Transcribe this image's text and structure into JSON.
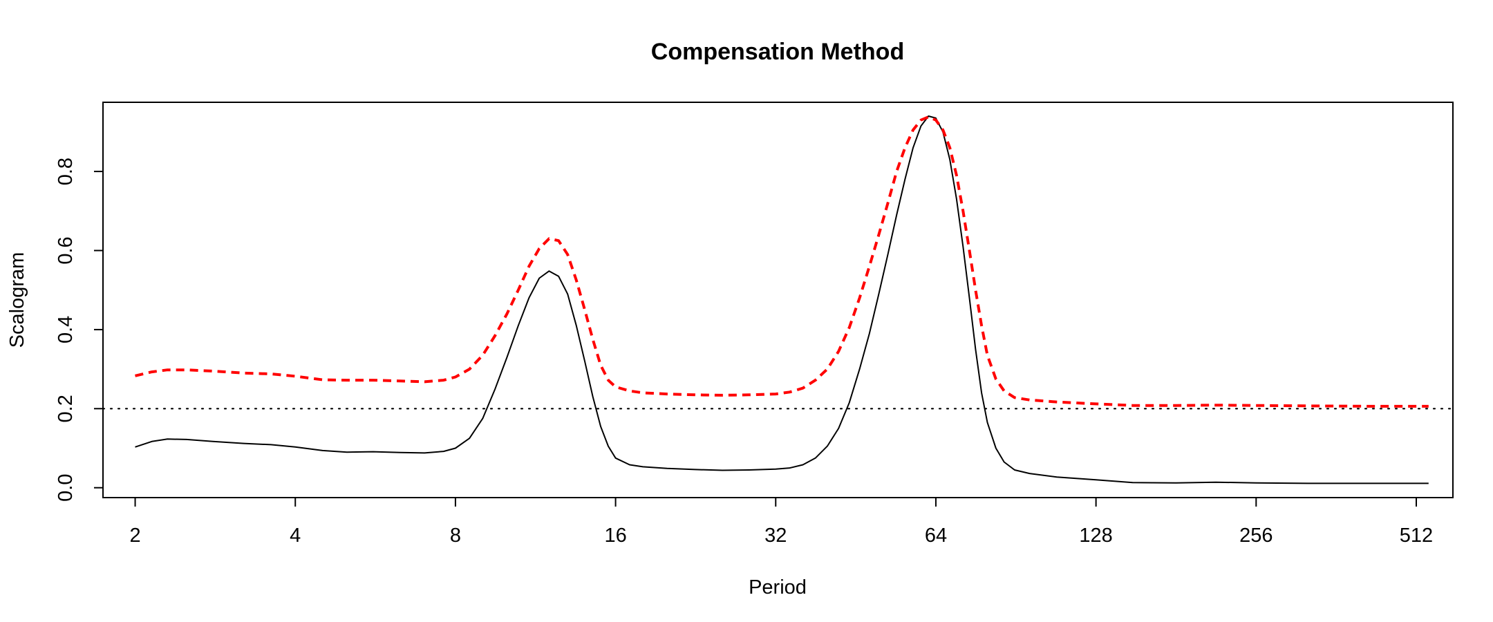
{
  "chart_data": {
    "type": "line",
    "title": "Compensation Method",
    "xlabel": "Period",
    "ylabel": "Scalogram",
    "x_scale": "log2",
    "xlim": [
      1.74,
      600
    ],
    "ylim": [
      -0.025,
      0.975
    ],
    "x_ticks": [
      2,
      4,
      8,
      16,
      32,
      64,
      128,
      256,
      512
    ],
    "x_tick_labels": [
      "2",
      "4",
      "8",
      "16",
      "32",
      "64",
      "128",
      "256",
      "512"
    ],
    "y_ticks": [
      0.0,
      0.2,
      0.4,
      0.6,
      0.8
    ],
    "y_tick_labels": [
      "0.0",
      "0.2",
      "0.4",
      "0.6",
      "0.8"
    ],
    "grid": false,
    "legend": "none",
    "reference_line": {
      "y": 0.2,
      "style": "dotted",
      "color": "#000000"
    },
    "series": [
      {
        "style": "solid",
        "color": "#000000",
        "points": [
          [
            2,
            0.103
          ],
          [
            2.15,
            0.117
          ],
          [
            2.3,
            0.123
          ],
          [
            2.5,
            0.122
          ],
          [
            2.8,
            0.117
          ],
          [
            3.2,
            0.112
          ],
          [
            3.6,
            0.109
          ],
          [
            4.0,
            0.103
          ],
          [
            4.5,
            0.094
          ],
          [
            5.0,
            0.09
          ],
          [
            5.6,
            0.091
          ],
          [
            6.3,
            0.089
          ],
          [
            7.0,
            0.088
          ],
          [
            7.6,
            0.092
          ],
          [
            8.0,
            0.1
          ],
          [
            8.5,
            0.125
          ],
          [
            9.0,
            0.175
          ],
          [
            9.5,
            0.25
          ],
          [
            10.0,
            0.33
          ],
          [
            10.5,
            0.41
          ],
          [
            11.0,
            0.48
          ],
          [
            11.5,
            0.53
          ],
          [
            12.0,
            0.548
          ],
          [
            12.5,
            0.535
          ],
          [
            13.0,
            0.49
          ],
          [
            13.5,
            0.41
          ],
          [
            14.0,
            0.32
          ],
          [
            14.5,
            0.23
          ],
          [
            15.0,
            0.155
          ],
          [
            15.5,
            0.105
          ],
          [
            16.0,
            0.075
          ],
          [
            17.0,
            0.058
          ],
          [
            18.0,
            0.053
          ],
          [
            20.0,
            0.049
          ],
          [
            22.6,
            0.046
          ],
          [
            25.4,
            0.044
          ],
          [
            28.5,
            0.045
          ],
          [
            32.0,
            0.047
          ],
          [
            34.0,
            0.05
          ],
          [
            36.0,
            0.058
          ],
          [
            38.0,
            0.075
          ],
          [
            40.0,
            0.105
          ],
          [
            42.0,
            0.15
          ],
          [
            44.0,
            0.215
          ],
          [
            46.0,
            0.3
          ],
          [
            48.0,
            0.39
          ],
          [
            50.0,
            0.49
          ],
          [
            52.0,
            0.59
          ],
          [
            54.0,
            0.69
          ],
          [
            56.0,
            0.78
          ],
          [
            58.0,
            0.86
          ],
          [
            60.0,
            0.915
          ],
          [
            62.0,
            0.94
          ],
          [
            64.0,
            0.935
          ],
          [
            66.0,
            0.9
          ],
          [
            68.0,
            0.83
          ],
          [
            70.0,
            0.73
          ],
          [
            72.0,
            0.61
          ],
          [
            74.0,
            0.48
          ],
          [
            76.0,
            0.35
          ],
          [
            78.0,
            0.24
          ],
          [
            80.0,
            0.165
          ],
          [
            83.0,
            0.1
          ],
          [
            86.0,
            0.065
          ],
          [
            90.0,
            0.045
          ],
          [
            96.0,
            0.036
          ],
          [
            108.0,
            0.027
          ],
          [
            128.0,
            0.02
          ],
          [
            150.0,
            0.013
          ],
          [
            181.0,
            0.012
          ],
          [
            215.0,
            0.014
          ],
          [
            256.0,
            0.012
          ],
          [
            320.0,
            0.011
          ],
          [
            430.0,
            0.011
          ],
          [
            540.0,
            0.011
          ]
        ]
      },
      {
        "style": "dashed",
        "color": "#ff0000",
        "points": [
          [
            2,
            0.283
          ],
          [
            2.15,
            0.293
          ],
          [
            2.3,
            0.298
          ],
          [
            2.5,
            0.298
          ],
          [
            2.8,
            0.295
          ],
          [
            3.2,
            0.29
          ],
          [
            3.6,
            0.288
          ],
          [
            4.0,
            0.282
          ],
          [
            4.5,
            0.273
          ],
          [
            5.0,
            0.272
          ],
          [
            5.6,
            0.272
          ],
          [
            6.3,
            0.27
          ],
          [
            7.0,
            0.268
          ],
          [
            7.6,
            0.272
          ],
          [
            8.0,
            0.28
          ],
          [
            8.5,
            0.3
          ],
          [
            9.0,
            0.335
          ],
          [
            9.5,
            0.385
          ],
          [
            10.0,
            0.44
          ],
          [
            10.5,
            0.5
          ],
          [
            11.0,
            0.56
          ],
          [
            11.5,
            0.605
          ],
          [
            12.0,
            0.63
          ],
          [
            12.5,
            0.625
          ],
          [
            13.0,
            0.59
          ],
          [
            13.5,
            0.525
          ],
          [
            14.0,
            0.45
          ],
          [
            14.5,
            0.375
          ],
          [
            15.0,
            0.31
          ],
          [
            15.5,
            0.272
          ],
          [
            16.0,
            0.255
          ],
          [
            17.0,
            0.245
          ],
          [
            18.0,
            0.24
          ],
          [
            20.0,
            0.237
          ],
          [
            22.6,
            0.235
          ],
          [
            25.4,
            0.234
          ],
          [
            28.5,
            0.235
          ],
          [
            32.0,
            0.237
          ],
          [
            34.0,
            0.242
          ],
          [
            36.0,
            0.252
          ],
          [
            38.0,
            0.272
          ],
          [
            40.0,
            0.3
          ],
          [
            42.0,
            0.345
          ],
          [
            44.0,
            0.405
          ],
          [
            46.0,
            0.48
          ],
          [
            48.0,
            0.56
          ],
          [
            50.0,
            0.64
          ],
          [
            52.0,
            0.72
          ],
          [
            54.0,
            0.8
          ],
          [
            56.0,
            0.86
          ],
          [
            58.0,
            0.905
          ],
          [
            60.0,
            0.93
          ],
          [
            62.0,
            0.938
          ],
          [
            64.0,
            0.93
          ],
          [
            66.0,
            0.905
          ],
          [
            68.0,
            0.86
          ],
          [
            70.0,
            0.79
          ],
          [
            72.0,
            0.7
          ],
          [
            74.0,
            0.6
          ],
          [
            76.0,
            0.5
          ],
          [
            78.0,
            0.41
          ],
          [
            80.0,
            0.335
          ],
          [
            83.0,
            0.275
          ],
          [
            86.0,
            0.245
          ],
          [
            90.0,
            0.228
          ],
          [
            96.0,
            0.222
          ],
          [
            108.0,
            0.217
          ],
          [
            128.0,
            0.212
          ],
          [
            150.0,
            0.208
          ],
          [
            181.0,
            0.208
          ],
          [
            215.0,
            0.209
          ],
          [
            256.0,
            0.208
          ],
          [
            320.0,
            0.207
          ],
          [
            430.0,
            0.206
          ],
          [
            540.0,
            0.206
          ]
        ]
      }
    ]
  }
}
